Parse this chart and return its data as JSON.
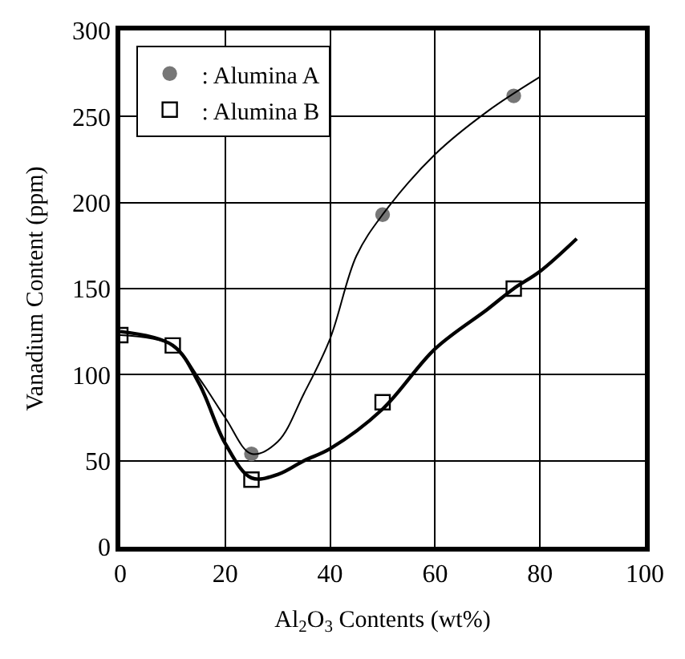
{
  "chart_data": {
    "type": "scatter",
    "xlabel": "Al$_{2}$O$_{3}$ Contents (wt%)",
    "ylabel": "Vanadium Content (ppm)",
    "xlim": [
      0,
      100
    ],
    "xticks": [
      0,
      20,
      40,
      60,
      80,
      100
    ],
    "ylim": [
      0,
      300
    ],
    "yticks": [
      0,
      50,
      100,
      150,
      200,
      250,
      300
    ],
    "grid": true,
    "legend": "top left",
    "series": [
      {
        "name": ": Alumina A",
        "color": "#777777",
        "marker": "circle",
        "x": [
          25,
          50,
          75
        ],
        "values": [
          54,
          193,
          262
        ]
      },
      {
        "name": ": Alumina B",
        "color": "#000000",
        "marker": "square",
        "x": [
          0,
          10,
          25,
          50,
          75
        ],
        "values": [
          123,
          117,
          39,
          84,
          150
        ]
      },
      {
        "type": "line",
        "color": "#000000",
        "marker": "none",
        "line_style": "solid",
        "x": [
          0,
          10,
          15,
          20,
          25,
          30,
          35,
          40,
          45,
          50,
          60,
          70,
          80
        ],
        "values": [
          123,
          117,
          98,
          75,
          54,
          61,
          89,
          121,
          169,
          193,
          228,
          253,
          273
        ]
      },
      {
        "type": "line",
        "color": "#000000",
        "marker": "none",
        "line_style": "solid",
        "x": [
          0,
          10,
          15,
          20,
          25,
          30,
          35,
          40,
          50,
          60,
          70,
          75,
          80,
          87
        ],
        "values": [
          125,
          117,
          95,
          60,
          40,
          42,
          50,
          57,
          80,
          115,
          138,
          150,
          160,
          179
        ]
      }
    ]
  }
}
